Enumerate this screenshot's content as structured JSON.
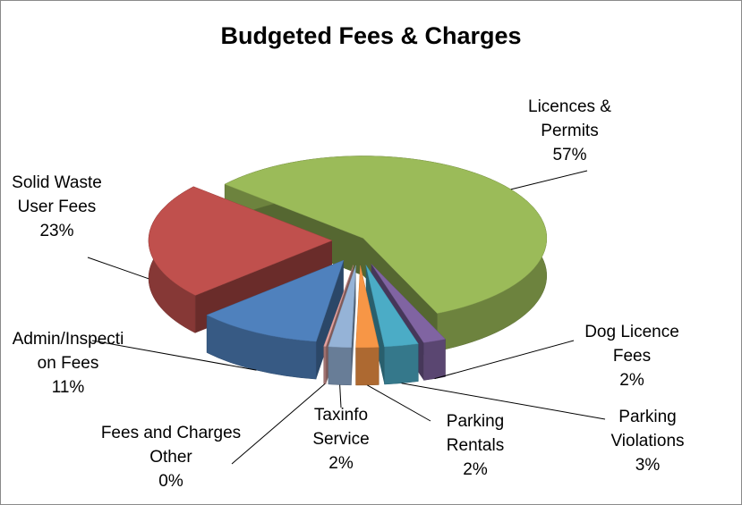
{
  "chart_data": {
    "type": "pie",
    "title": "Budgeted Fees & Charges",
    "categories": [
      "Licences & Permits",
      "Dog Licence Fees",
      "Parking Violations",
      "Parking Rentals",
      "Taxinfo Service",
      "Fees and Charges Other",
      "Admin/Inspection Fees",
      "Solid Waste User Fees"
    ],
    "values": [
      57,
      2,
      3,
      2,
      2,
      0,
      11,
      23
    ],
    "value_labels": [
      "57%",
      "2%",
      "3%",
      "2%",
      "2%",
      "0%",
      "11%",
      "23%"
    ],
    "colors": [
      "#9bbb59",
      "#8064a2",
      "#4bacc6",
      "#f79646",
      "#95b3d7",
      "#e6a3a1",
      "#4f81bd",
      "#c0504d"
    ],
    "exploded": true
  }
}
